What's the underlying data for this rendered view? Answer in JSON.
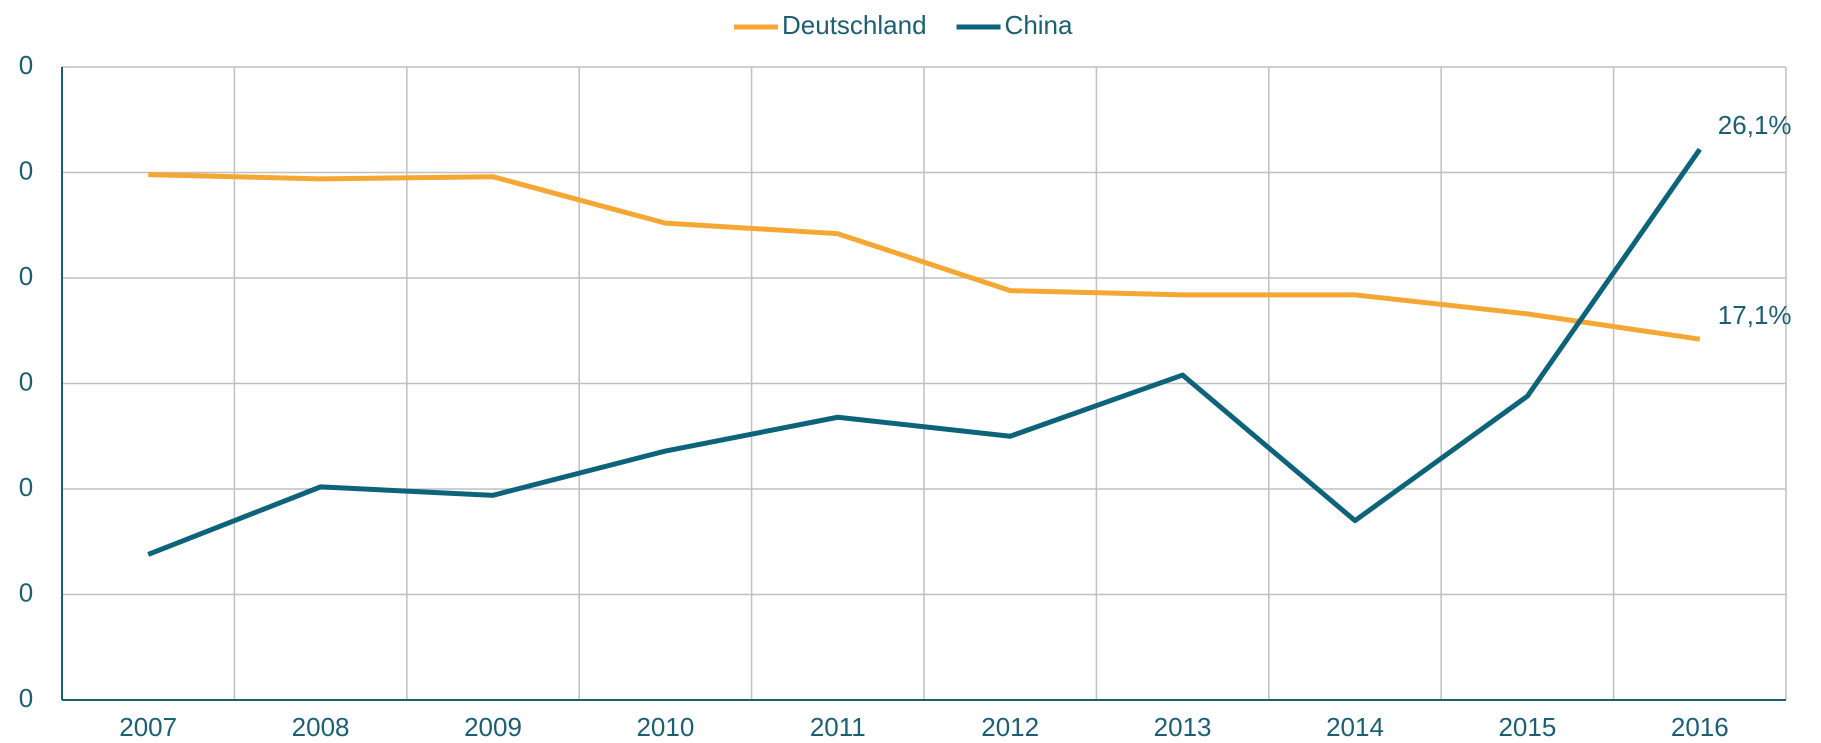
{
  "chart_data": {
    "type": "line",
    "categories": [
      "2007",
      "2008",
      "2009",
      "2010",
      "2011",
      "2012",
      "2013",
      "2014",
      "2015",
      "2016"
    ],
    "series": [
      {
        "name": "Deutschland",
        "color": "#f5a733",
        "values": [
          24.9,
          24.7,
          24.8,
          22.6,
          22.1,
          19.4,
          19.2,
          19.2,
          18.3,
          17.1
        ],
        "value_labels": [
          null,
          null,
          null,
          null,
          null,
          null,
          null,
          null,
          null,
          "17,1%"
        ]
      },
      {
        "name": "China",
        "color": "#0d6379",
        "values": [
          6.9,
          10.1,
          9.7,
          11.8,
          13.4,
          12.5,
          15.4,
          8.5,
          14.4,
          26.1
        ],
        "value_labels": [
          null,
          null,
          null,
          null,
          null,
          null,
          null,
          null,
          null,
          "26,1%"
        ]
      }
    ],
    "ylim": [
      0,
      30
    ],
    "yticks": [
      0,
      {
        "value": 5,
        "label": "0"
      },
      {
        "value": 10,
        "label": "0"
      },
      {
        "value": 15,
        "label": "0"
      },
      {
        "value": 20,
        "label": "0"
      },
      {
        "value": 25,
        "label": "0"
      },
      {
        "value": 30,
        "label": "0"
      }
    ],
    "grid": true,
    "legend": "top"
  }
}
